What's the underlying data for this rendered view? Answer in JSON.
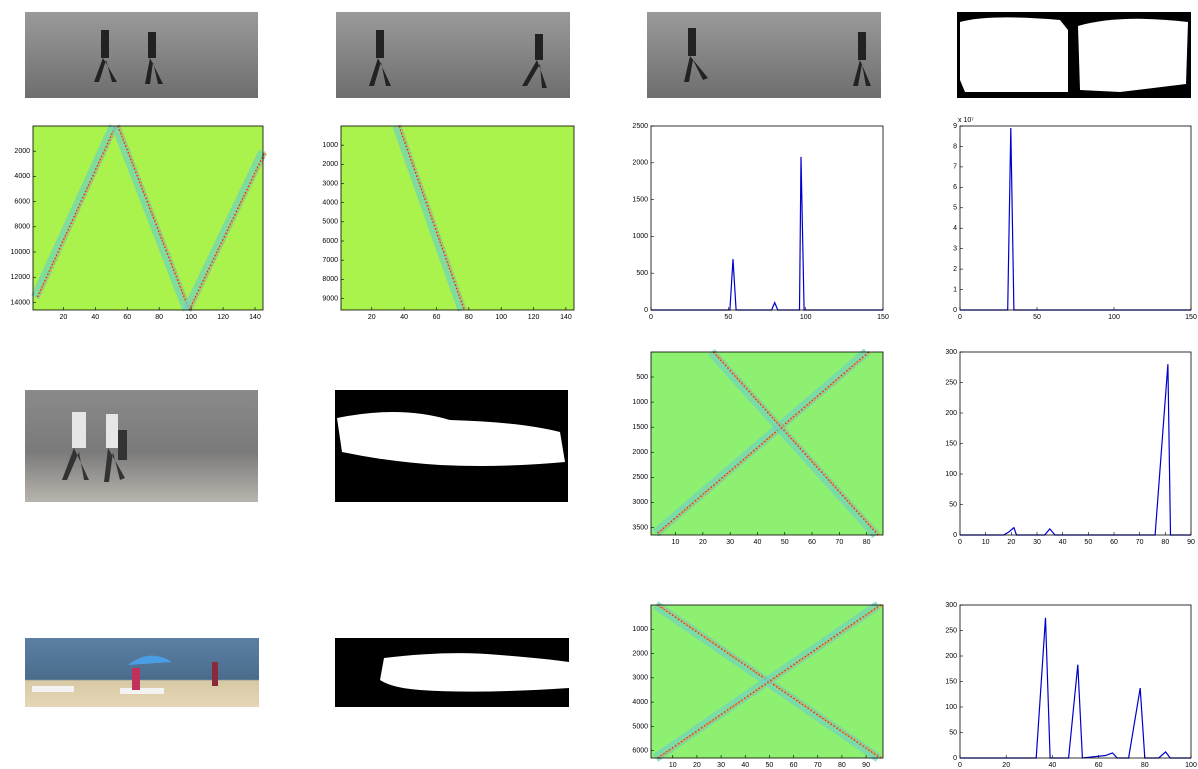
{
  "chart_data": [
    {
      "type": "heatmap",
      "color": "#aaf24c",
      "xlim": [
        1,
        145
      ],
      "xticks": [
        20,
        40,
        60,
        80,
        100,
        120,
        140
      ],
      "ylim": [
        1,
        14600
      ],
      "y_reversed": true,
      "yticks": [
        2000,
        4000,
        6000,
        8000,
        10000,
        12000,
        14000
      ]
    },
    {
      "type": "heatmap",
      "color": "#aaf24c",
      "xlim": [
        1,
        145
      ],
      "xticks": [
        20,
        40,
        60,
        80,
        100,
        120,
        140
      ],
      "ylim": [
        1,
        9600
      ],
      "y_reversed": true,
      "yticks": [
        1000,
        2000,
        3000,
        4000,
        5000,
        6000,
        7000,
        8000,
        9000
      ]
    },
    {
      "type": "line",
      "color": "#0000cc",
      "xlim": [
        0,
        150
      ],
      "xticks": [
        0,
        50,
        100,
        150
      ],
      "ylim": [
        0,
        2500
      ],
      "yticks": [
        0,
        500,
        1000,
        1500,
        2000,
        2500
      ],
      "x": [
        0,
        51,
        53,
        55,
        78,
        80,
        82,
        96,
        97,
        99,
        150
      ],
      "values": [
        0,
        0,
        690,
        0,
        0,
        100,
        0,
        0,
        2080,
        0,
        0
      ]
    },
    {
      "type": "line",
      "color": "#0000cc",
      "xlim": [
        0,
        150
      ],
      "xticks": [
        0,
        50,
        100,
        150
      ],
      "ylim": [
        0,
        9
      ],
      "yticks": [
        0,
        1,
        2,
        3,
        4,
        5,
        6,
        7,
        8,
        9
      ],
      "annotation": "x 10⁷",
      "x": [
        0,
        31,
        33,
        35,
        150
      ],
      "values": [
        0,
        0,
        8.9,
        0,
        0
      ]
    },
    {
      "type": "heatmap",
      "color": "#8ef070",
      "xlim": [
        1,
        86
      ],
      "xticks": [
        10,
        20,
        30,
        40,
        50,
        60,
        70,
        80
      ],
      "ylim": [
        1,
        3650
      ],
      "y_reversed": true,
      "yticks": [
        500,
        1000,
        1500,
        2000,
        2500,
        3000,
        3500
      ]
    },
    {
      "type": "line",
      "color": "#0000cc",
      "xlim": [
        0,
        90
      ],
      "xticks": [
        0,
        10,
        20,
        30,
        40,
        50,
        60,
        70,
        80,
        90
      ],
      "ylim": [
        0,
        300
      ],
      "yticks": [
        0,
        50,
        100,
        150,
        200,
        250,
        300
      ],
      "x": [
        0,
        17,
        19,
        21,
        22,
        33,
        35,
        37,
        76,
        81,
        82,
        90
      ],
      "values": [
        0,
        0,
        5,
        12,
        0,
        0,
        10,
        0,
        0,
        280,
        0,
        0
      ]
    },
    {
      "type": "heatmap",
      "color": "#8ef070",
      "xlim": [
        1,
        97
      ],
      "xticks": [
        10,
        20,
        30,
        40,
        50,
        60,
        70,
        80,
        90
      ],
      "ylim": [
        1,
        6300
      ],
      "y_reversed": true,
      "yticks": [
        1000,
        2000,
        3000,
        4000,
        5000,
        6000
      ]
    },
    {
      "type": "line",
      "color": "#0000cc",
      "xlim": [
        0,
        100
      ],
      "xticks": [
        0,
        20,
        40,
        60,
        80,
        100
      ],
      "ylim": [
        0,
        300
      ],
      "yticks": [
        0,
        50,
        100,
        150,
        200,
        250,
        300
      ],
      "x": [
        0,
        33,
        37,
        39,
        47,
        51,
        53,
        63,
        66,
        68,
        73,
        78,
        80,
        86,
        89,
        91,
        100
      ],
      "values": [
        0,
        0,
        275,
        0,
        0,
        183,
        0,
        5,
        10,
        0,
        0,
        137,
        0,
        0,
        12,
        0,
        0
      ]
    }
  ]
}
